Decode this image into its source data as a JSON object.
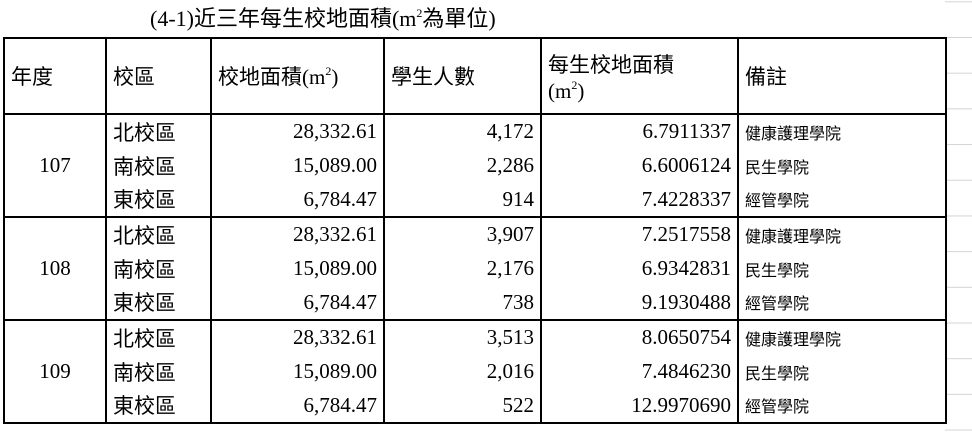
{
  "title": {
    "before": "(4-1)近三年每生校地面積(m",
    "sup": "2",
    "after": "為單位)"
  },
  "header": {
    "year": "年度",
    "campus": "校區",
    "area": {
      "before": "校地面積(m",
      "sup": "2",
      "after": ")"
    },
    "students": "學生人數",
    "per_student": {
      "line1": "每生校地面積",
      "before": "(m",
      "sup": "2",
      "after": ")"
    },
    "note": "備註"
  },
  "groups": [
    {
      "year": "107",
      "rows": [
        [
          "北校區",
          "28,332.61",
          "4,172",
          "6.7911337",
          "健康護理學院"
        ],
        [
          "南校區",
          "15,089.00",
          "2,286",
          "6.6006124",
          "民生學院"
        ],
        [
          "東校區",
          "6,784.47",
          "914",
          "7.4228337",
          "經管學院"
        ]
      ]
    },
    {
      "year": "108",
      "rows": [
        [
          "北校區",
          "28,332.61",
          "3,907",
          "7.2517558",
          "健康護理學院"
        ],
        [
          "南校區",
          "15,089.00",
          "2,176",
          "6.9342831",
          "民生學院"
        ],
        [
          "東校區",
          "6,784.47",
          "738",
          "9.1930488",
          "經管學院"
        ]
      ]
    },
    {
      "year": "109",
      "rows": [
        [
          "北校區",
          "28,332.61",
          "3,513",
          "8.0650754",
          "健康護理學院"
        ],
        [
          "南校區",
          "15,089.00",
          "2,016",
          "7.4846230",
          "民生學院"
        ],
        [
          "東校區",
          "6,784.47",
          "522",
          "12.9970690",
          "經管學院"
        ]
      ]
    }
  ]
}
